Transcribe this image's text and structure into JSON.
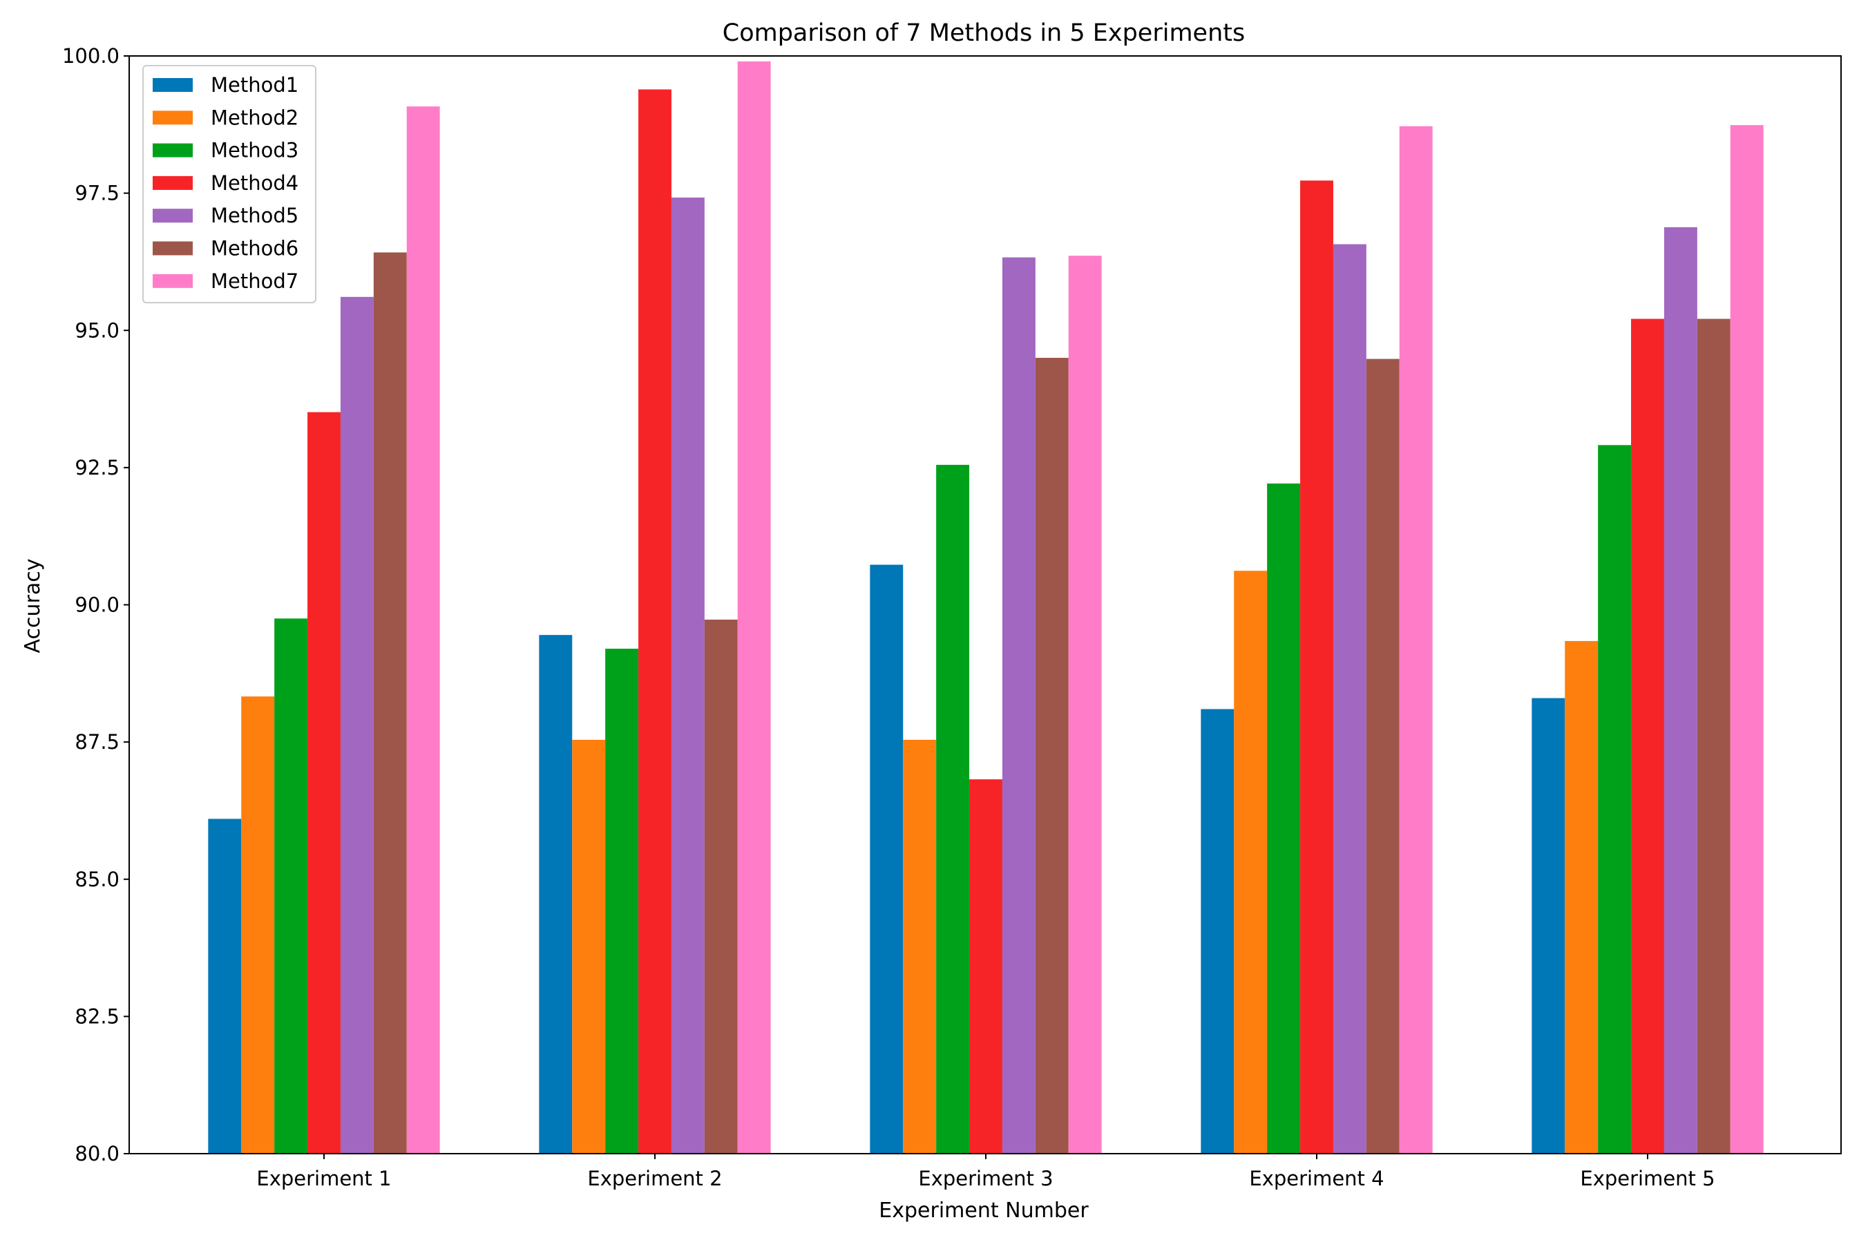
{
  "chart_data": {
    "type": "bar",
    "title": "Comparison of 7 Methods in 5 Experiments",
    "xlabel": "Experiment Number",
    "ylabel": "Accuracy",
    "ylim": [
      80,
      100
    ],
    "yticks": [
      "80.0",
      "82.5",
      "85.0",
      "87.5",
      "90.0",
      "92.5",
      "95.0",
      "97.5",
      "100.0"
    ],
    "categories": [
      "Experiment 1",
      "Experiment 2",
      "Experiment 3",
      "Experiment 4",
      "Experiment 5"
    ],
    "legend_position": "top-left",
    "series": [
      {
        "name": "Method1",
        "color": "#0077b7",
        "values": [
          86.1,
          89.45,
          90.73,
          88.1,
          88.3
        ]
      },
      {
        "name": "Method2",
        "color": "#ff7f0e",
        "values": [
          88.33,
          87.54,
          87.54,
          90.62,
          89.34
        ]
      },
      {
        "name": "Method3",
        "color": "#00a11a",
        "values": [
          89.75,
          89.2,
          92.55,
          92.21,
          92.91
        ]
      },
      {
        "name": "Method4",
        "color": "#f72427",
        "values": [
          93.51,
          99.39,
          86.82,
          97.73,
          95.21
        ]
      },
      {
        "name": "Method5",
        "color": "#a267c0",
        "values": [
          95.61,
          97.42,
          96.33,
          96.57,
          96.88
        ]
      },
      {
        "name": "Method6",
        "color": "#9e564b",
        "values": [
          96.42,
          89.73,
          94.5,
          94.48,
          95.21
        ]
      },
      {
        "name": "Method7",
        "color": "#ff7dc8",
        "values": [
          99.08,
          99.9,
          96.36,
          98.72,
          98.74
        ]
      }
    ]
  }
}
